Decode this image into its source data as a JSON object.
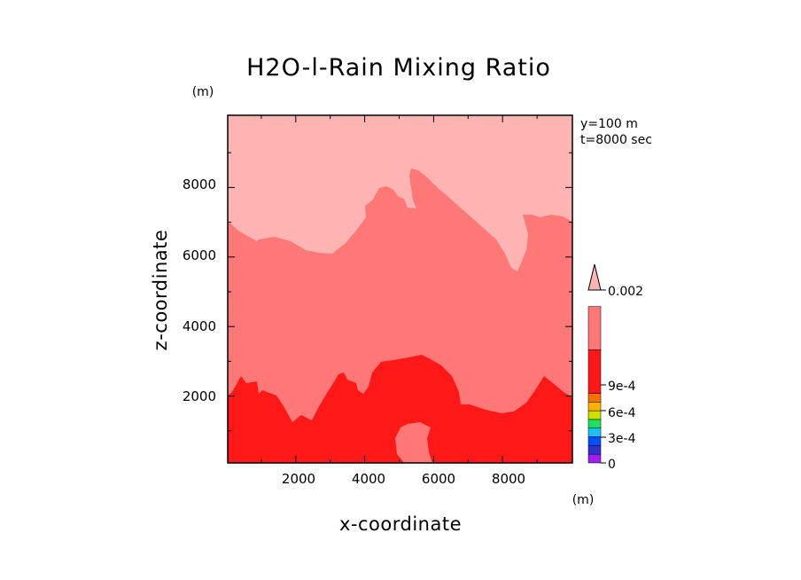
{
  "chart_data": {
    "type": "heatmap",
    "title": "H2O-l-Rain Mixing Ratio",
    "xlabel": "x-coordinate",
    "ylabel": "z-coordinate",
    "x_unit": "(m)",
    "y_unit": "(m)",
    "xlim": [
      0,
      10000
    ],
    "ylim": [
      0,
      10000
    ],
    "xticks": [
      "2000",
      "4000",
      "6000",
      "8000"
    ],
    "yticks": [
      "2000",
      "4000",
      "6000",
      "8000"
    ],
    "annotations": [
      "y=100 m",
      "t=8000 sec"
    ],
    "colorbar": {
      "max_label": "0.002",
      "labels": [
        "0",
        "3e-4",
        "6e-4",
        "9e-4",
        "0.002"
      ],
      "colors": [
        "#a020f0",
        "#3030d0",
        "#0050ff",
        "#20c0ff",
        "#20e060",
        "#d0e000",
        "#ffb000",
        "#ff7000",
        "#ff1818",
        "#ff7878",
        "#ffb4b4"
      ]
    },
    "regions": [
      {
        "level": "high (>0.002)",
        "color": "#ffb4b4",
        "approx_extent": "upper domain, z > ~7000 m"
      },
      {
        "level": "medium",
        "color": "#ff7878",
        "approx_extent": "middle domain, z ~ 2000-7000 m"
      },
      {
        "level": "low",
        "color": "#ff1818",
        "approx_extent": "lower domain, z < ~2500 m"
      }
    ]
  },
  "colors": {
    "level_top": "#ffb4b4",
    "level_mid": "#ff7878",
    "level_low": "#ff1818"
  }
}
